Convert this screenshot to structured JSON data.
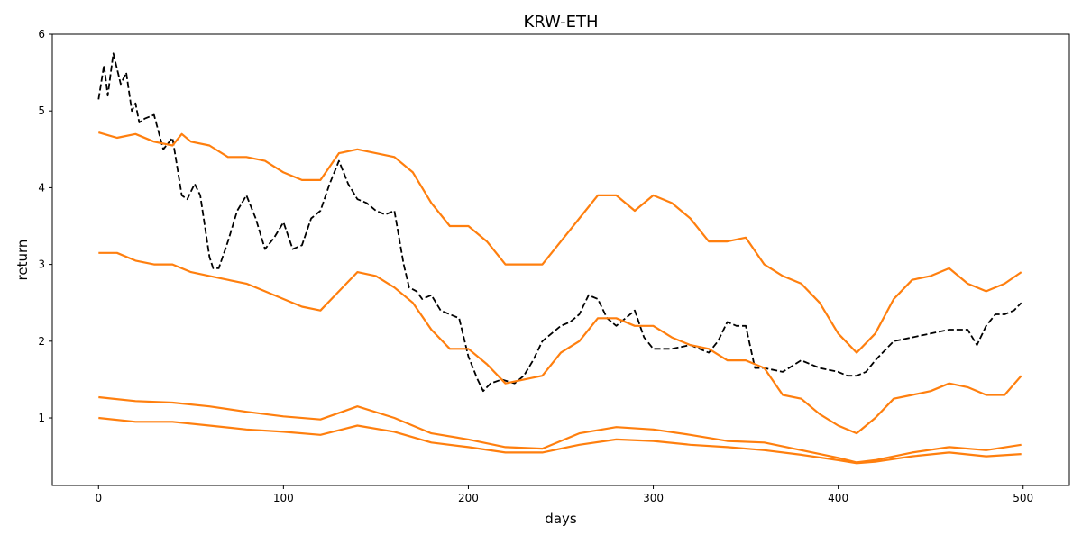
{
  "chart_data": {
    "type": "line",
    "title": "KRW-ETH",
    "xlabel": "days",
    "ylabel": "return",
    "xlim": [
      -25,
      525
    ],
    "ylim": [
      0.12,
      6.0
    ],
    "xticks": [
      0,
      100,
      200,
      300,
      400,
      500
    ],
    "yticks": [
      1,
      2,
      3,
      4,
      5,
      6
    ],
    "grid": false,
    "legend": "none",
    "series": [
      {
        "color": "#000000",
        "style": "dashed",
        "x": [
          0,
          3,
          5,
          8,
          12,
          15,
          18,
          20,
          22,
          25,
          30,
          35,
          40,
          45,
          48,
          52,
          55,
          60,
          62,
          65,
          70,
          75,
          80,
          85,
          90,
          95,
          100,
          105,
          110,
          115,
          120,
          125,
          130,
          135,
          140,
          145,
          150,
          155,
          160,
          165,
          168,
          172,
          175,
          180,
          185,
          190,
          195,
          200,
          205,
          208,
          212,
          218,
          225,
          230,
          235,
          240,
          245,
          250,
          255,
          260,
          265,
          270,
          275,
          280,
          285,
          290,
          295,
          300,
          310,
          320,
          330,
          335,
          340,
          345,
          350,
          355,
          360,
          370,
          380,
          390,
          400,
          405,
          410,
          415,
          420,
          430,
          440,
          450,
          460,
          470,
          475,
          480,
          485,
          490,
          495,
          499
        ],
        "y": [
          5.15,
          5.6,
          5.2,
          5.75,
          5.35,
          5.5,
          5.0,
          5.1,
          4.85,
          4.9,
          4.95,
          4.5,
          4.65,
          3.9,
          3.85,
          4.05,
          3.9,
          3.1,
          2.95,
          2.95,
          3.3,
          3.7,
          3.9,
          3.6,
          3.2,
          3.35,
          3.55,
          3.2,
          3.25,
          3.6,
          3.7,
          4.05,
          4.35,
          4.05,
          3.85,
          3.8,
          3.7,
          3.65,
          3.7,
          3.0,
          2.7,
          2.65,
          2.55,
          2.6,
          2.4,
          2.35,
          2.3,
          1.8,
          1.5,
          1.35,
          1.45,
          1.5,
          1.45,
          1.55,
          1.75,
          2.0,
          2.1,
          2.2,
          2.25,
          2.35,
          2.6,
          2.55,
          2.3,
          2.2,
          2.3,
          2.4,
          2.05,
          1.9,
          1.9,
          1.95,
          1.85,
          2.0,
          2.25,
          2.2,
          2.2,
          1.65,
          1.65,
          1.6,
          1.75,
          1.65,
          1.6,
          1.55,
          1.55,
          1.6,
          1.75,
          2.0,
          2.05,
          2.1,
          2.15,
          2.15,
          1.95,
          2.2,
          2.35,
          2.35,
          2.4,
          2.5
        ]
      },
      {
        "color": "#ff7f0e",
        "style": "solid",
        "x": [
          0,
          10,
          20,
          30,
          40,
          45,
          50,
          60,
          70,
          80,
          90,
          100,
          110,
          120,
          130,
          140,
          150,
          160,
          170,
          180,
          190,
          200,
          210,
          220,
          230,
          240,
          250,
          260,
          270,
          280,
          290,
          300,
          310,
          320,
          330,
          340,
          350,
          360,
          370,
          380,
          390,
          400,
          410,
          420,
          430,
          440,
          450,
          460,
          470,
          480,
          490,
          499
        ],
        "y": [
          4.72,
          4.65,
          4.7,
          4.6,
          4.55,
          4.7,
          4.6,
          4.55,
          4.4,
          4.4,
          4.35,
          4.2,
          4.1,
          4.1,
          4.45,
          4.5,
          4.45,
          4.4,
          4.2,
          3.8,
          3.5,
          3.5,
          3.3,
          3.0,
          3.0,
          3.0,
          3.3,
          3.6,
          3.9,
          3.9,
          3.7,
          3.9,
          3.8,
          3.6,
          3.3,
          3.3,
          3.35,
          3.0,
          2.85,
          2.75,
          2.5,
          2.1,
          1.85,
          2.1,
          2.55,
          2.8,
          2.85,
          2.95,
          2.75,
          2.65,
          2.75,
          2.9
        ]
      },
      {
        "color": "#ff7f0e",
        "style": "solid",
        "x": [
          0,
          10,
          20,
          30,
          40,
          50,
          60,
          70,
          80,
          90,
          100,
          110,
          120,
          130,
          140,
          150,
          160,
          170,
          180,
          190,
          200,
          210,
          220,
          230,
          240,
          250,
          260,
          270,
          280,
          290,
          300,
          310,
          320,
          330,
          340,
          350,
          360,
          370,
          380,
          390,
          400,
          410,
          420,
          430,
          440,
          450,
          460,
          470,
          480,
          490,
          499
        ],
        "y": [
          3.15,
          3.15,
          3.05,
          3.0,
          3.0,
          2.9,
          2.85,
          2.8,
          2.75,
          2.65,
          2.55,
          2.45,
          2.4,
          2.65,
          2.9,
          2.85,
          2.7,
          2.5,
          2.15,
          1.9,
          1.9,
          1.7,
          1.45,
          1.5,
          1.55,
          1.85,
          2.0,
          2.3,
          2.3,
          2.2,
          2.2,
          2.05,
          1.95,
          1.9,
          1.75,
          1.75,
          1.65,
          1.3,
          1.25,
          1.05,
          0.9,
          0.8,
          1.0,
          1.25,
          1.3,
          1.35,
          1.45,
          1.4,
          1.3,
          1.3,
          1.55
        ]
      },
      {
        "color": "#ff7f0e",
        "style": "solid",
        "x": [
          0,
          20,
          40,
          60,
          80,
          100,
          120,
          140,
          160,
          180,
          200,
          220,
          240,
          260,
          280,
          300,
          320,
          340,
          360,
          380,
          400,
          410,
          420,
          440,
          460,
          480,
          499
        ],
        "y": [
          1.27,
          1.22,
          1.2,
          1.15,
          1.08,
          1.02,
          0.98,
          1.15,
          1.0,
          0.8,
          0.72,
          0.62,
          0.6,
          0.8,
          0.88,
          0.85,
          0.78,
          0.7,
          0.68,
          0.58,
          0.48,
          0.42,
          0.45,
          0.55,
          0.62,
          0.58,
          0.65
        ]
      },
      {
        "color": "#ff7f0e",
        "style": "solid",
        "x": [
          0,
          20,
          40,
          60,
          80,
          100,
          120,
          140,
          160,
          180,
          200,
          220,
          240,
          260,
          280,
          300,
          320,
          340,
          360,
          380,
          400,
          410,
          420,
          440,
          460,
          480,
          499
        ],
        "y": [
          1.0,
          0.95,
          0.95,
          0.9,
          0.85,
          0.82,
          0.78,
          0.9,
          0.82,
          0.68,
          0.62,
          0.55,
          0.55,
          0.65,
          0.72,
          0.7,
          0.65,
          0.62,
          0.58,
          0.52,
          0.45,
          0.41,
          0.43,
          0.5,
          0.55,
          0.5,
          0.53
        ]
      }
    ]
  }
}
